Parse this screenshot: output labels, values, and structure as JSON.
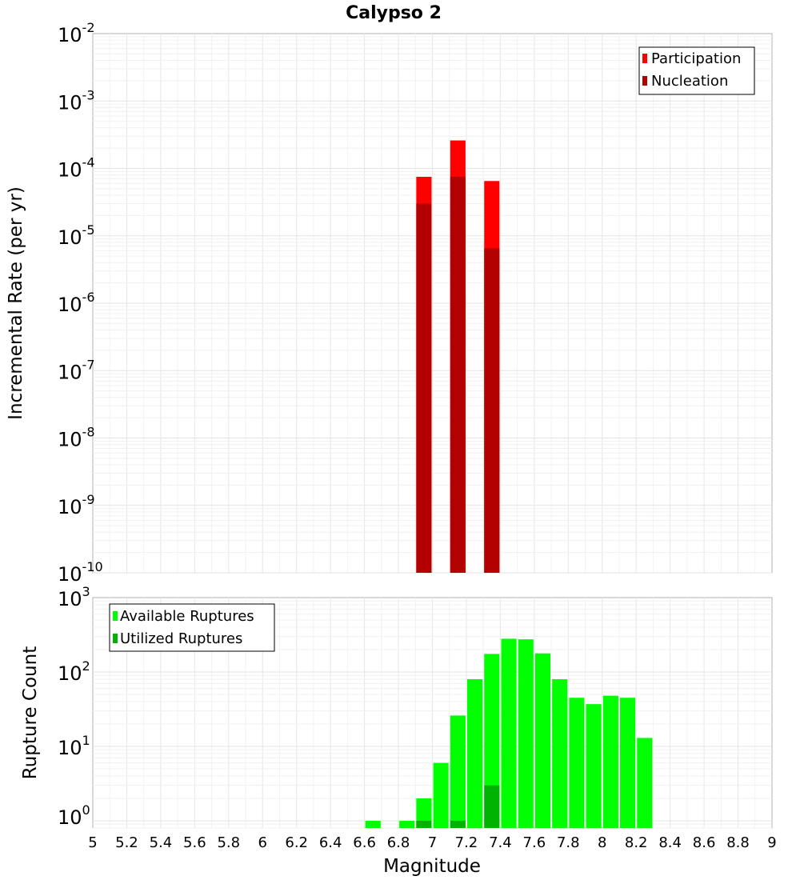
{
  "chart_data": [
    {
      "type": "bar",
      "title": "Calypso 2",
      "ylabel": "Incremental Rate (per yr)",
      "xlabel": "",
      "ylim": [
        1e-10,
        0.01
      ],
      "yscale": "log",
      "xlim": [
        5,
        9
      ],
      "grid": true,
      "legend_position": "top-right",
      "y_tick_exponents": [
        "-2",
        "-3",
        "-4",
        "-5",
        "-6",
        "-7",
        "-8",
        "-9",
        "-10"
      ],
      "y_tick_base": "10",
      "x": [
        6.95,
        7.15,
        7.35
      ],
      "bar_width": 0.09,
      "series": [
        {
          "name": "Participation",
          "color": "#ff0000",
          "values": [
            7.5e-05,
            0.00026,
            6.5e-05
          ]
        },
        {
          "name": "Nucleation",
          "color": "#b30000",
          "values": [
            3e-05,
            7.5e-05,
            6.5e-06
          ]
        }
      ]
    },
    {
      "type": "bar",
      "title": "",
      "ylabel": "Rupture Count",
      "xlabel": "Magnitude",
      "ylim": [
        0.8,
        1000
      ],
      "yscale": "log",
      "xlim": [
        5,
        9
      ],
      "grid": true,
      "legend_position": "top-left",
      "y_tick_exponents": [
        "3",
        "2",
        "1",
        "0"
      ],
      "y_tick_base": "10",
      "x_ticks": [
        "5",
        "5.2",
        "5.4",
        "5.6",
        "5.8",
        "6",
        "6.2",
        "6.4",
        "6.6",
        "6.8",
        "7",
        "7.2",
        "7.4",
        "7.6",
        "7.8",
        "8",
        "8.2",
        "8.4",
        "8.6",
        "8.8",
        "9"
      ],
      "x": [
        6.65,
        6.85,
        6.95,
        7.05,
        7.15,
        7.25,
        7.35,
        7.45,
        7.55,
        7.65,
        7.75,
        7.85,
        7.95,
        8.05,
        8.15,
        8.25
      ],
      "bar_width": 0.09,
      "series": [
        {
          "name": "Available Ruptures",
          "color": "#00ff00",
          "values": [
            1,
            1,
            2,
            6,
            26,
            80,
            175,
            280,
            275,
            178,
            80,
            45,
            37,
            48,
            45,
            13
          ]
        },
        {
          "name": "Utilized Ruptures",
          "color": "#00b300",
          "values": [
            0,
            0,
            1,
            0,
            1,
            0,
            3,
            0,
            0,
            0,
            0,
            0,
            0,
            0,
            0,
            0
          ]
        }
      ]
    }
  ]
}
